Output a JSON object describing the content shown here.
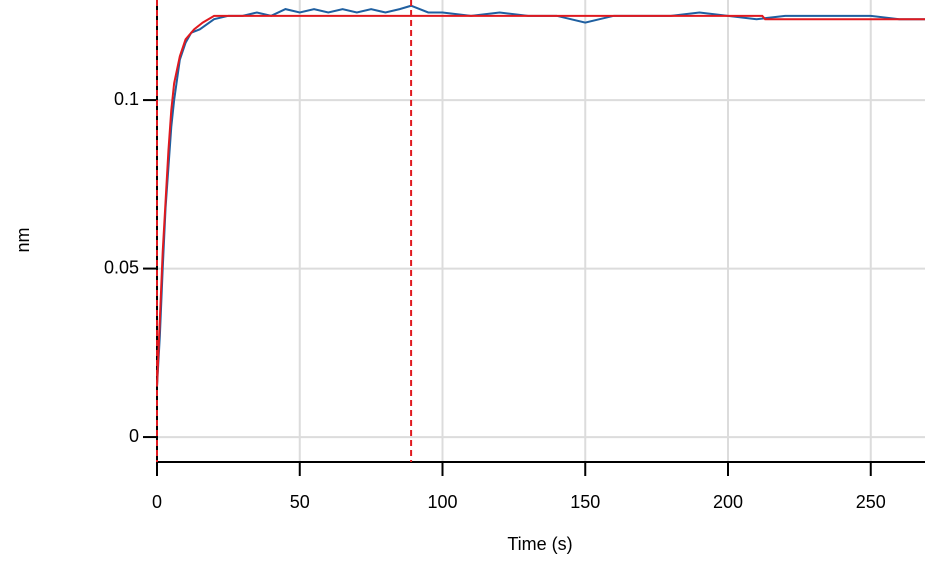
{
  "chart_data": {
    "type": "line",
    "xlabel": "Time (s)",
    "ylabel": "nm",
    "xlim": [
      0,
      269
    ],
    "ylim": [
      -0.0074,
      0.1297
    ],
    "xticks": [
      0,
      50,
      100,
      150,
      200,
      250
    ],
    "yticks": [
      0,
      0.05,
      0.1
    ],
    "grid": true,
    "vlines": [
      0,
      89
    ],
    "vline_color": "#e0191f",
    "series": [
      {
        "color": "#1f5fa0",
        "x": [
          0,
          1,
          2,
          3,
          4,
          5,
          6,
          8,
          10,
          12,
          15,
          20,
          25,
          30,
          35,
          40,
          45,
          50,
          55,
          60,
          65,
          70,
          75,
          80,
          85,
          89,
          95,
          100,
          110,
          120,
          130,
          140,
          150,
          155,
          160,
          170,
          180,
          190,
          200,
          210,
          220,
          230,
          240,
          250,
          260,
          269
        ],
        "values": [
          0.015,
          0.03,
          0.05,
          0.068,
          0.08,
          0.092,
          0.1,
          0.112,
          0.117,
          0.12,
          0.121,
          0.124,
          0.125,
          0.125,
          0.126,
          0.125,
          0.127,
          0.126,
          0.127,
          0.126,
          0.127,
          0.126,
          0.127,
          0.126,
          0.127,
          0.128,
          0.126,
          0.126,
          0.125,
          0.126,
          0.125,
          0.125,
          0.123,
          0.124,
          0.125,
          0.125,
          0.125,
          0.126,
          0.125,
          0.124,
          0.125,
          0.125,
          0.125,
          0.125,
          0.124,
          0.124
        ]
      },
      {
        "color": "#e0191f",
        "x": [
          0,
          1,
          2,
          3,
          4,
          5,
          6,
          8,
          10,
          13,
          16,
          20,
          89,
          212,
          213,
          269
        ],
        "values": [
          0.015,
          0.035,
          0.055,
          0.07,
          0.085,
          0.097,
          0.105,
          0.113,
          0.118,
          0.121,
          0.123,
          0.125,
          0.125,
          0.125,
          0.124,
          0.124
        ]
      }
    ]
  }
}
